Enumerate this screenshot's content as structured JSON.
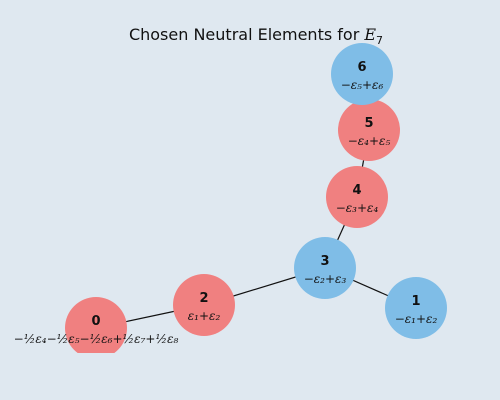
{
  "title": {
    "text": "Chosen Neutral Elements for ",
    "symbol": "E",
    "subscript": "7"
  },
  "colors": {
    "background": "#dfe8f0",
    "red_node": "#f08080",
    "blue_node": "#7fbde7",
    "edge": "#111111"
  },
  "nodes": [
    {
      "id": "0",
      "label": "−½ε₄−½ε₅−½ε₆+½ε₇+½ε₈",
      "color": "red"
    },
    {
      "id": "2",
      "label": "ε₁+ε₂",
      "color": "red"
    },
    {
      "id": "3",
      "label": "−ε₂+ε₃",
      "color": "blue"
    },
    {
      "id": "1",
      "label": "−ε₁+ε₂",
      "color": "blue"
    },
    {
      "id": "4",
      "label": "−ε₃+ε₄",
      "color": "red"
    },
    {
      "id": "5",
      "label": "−ε₄+ε₅",
      "color": "red"
    },
    {
      "id": "6",
      "label": "−ε₅+ε₆",
      "color": "blue"
    }
  ],
  "edges": [
    [
      "0",
      "2"
    ],
    [
      "2",
      "3"
    ],
    [
      "3",
      "1"
    ],
    [
      "3",
      "4"
    ],
    [
      "4",
      "5"
    ],
    [
      "5",
      "6"
    ]
  ]
}
